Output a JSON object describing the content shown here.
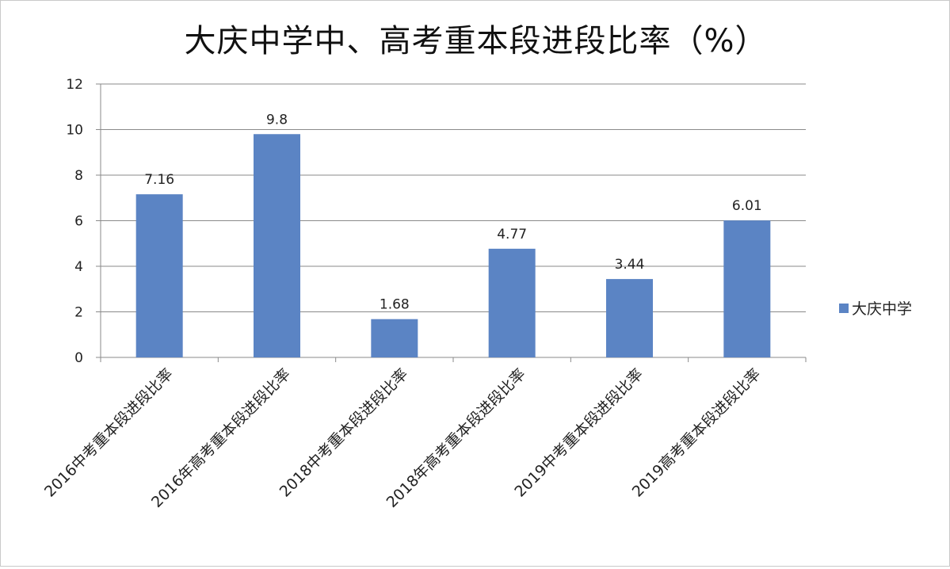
{
  "chart_data": {
    "type": "bar",
    "title": "大庆中学中、高考重本段进段比率（%）",
    "categories": [
      "2016中考重本段进段比率",
      "2016年高考重本段进段比率",
      "2018中考重本段进段比率",
      "2018年高考重本段进段比率",
      "2019中考重本段进段比率",
      "2019高考重本段进段比率"
    ],
    "series": [
      {
        "name": "大庆中学",
        "values": [
          7.16,
          9.8,
          1.68,
          4.77,
          3.44,
          6.01
        ]
      }
    ],
    "value_labels": [
      "7.16",
      "9.8",
      "1.68",
      "4.77",
      "3.44",
      "6.01"
    ],
    "ylim": [
      0,
      12
    ],
    "yticks": [
      0,
      2,
      4,
      6,
      8,
      10,
      12
    ],
    "grid": true,
    "legend_position": "right",
    "bar_color": "#5b84c4",
    "grid_color": "#8a8a8a"
  }
}
